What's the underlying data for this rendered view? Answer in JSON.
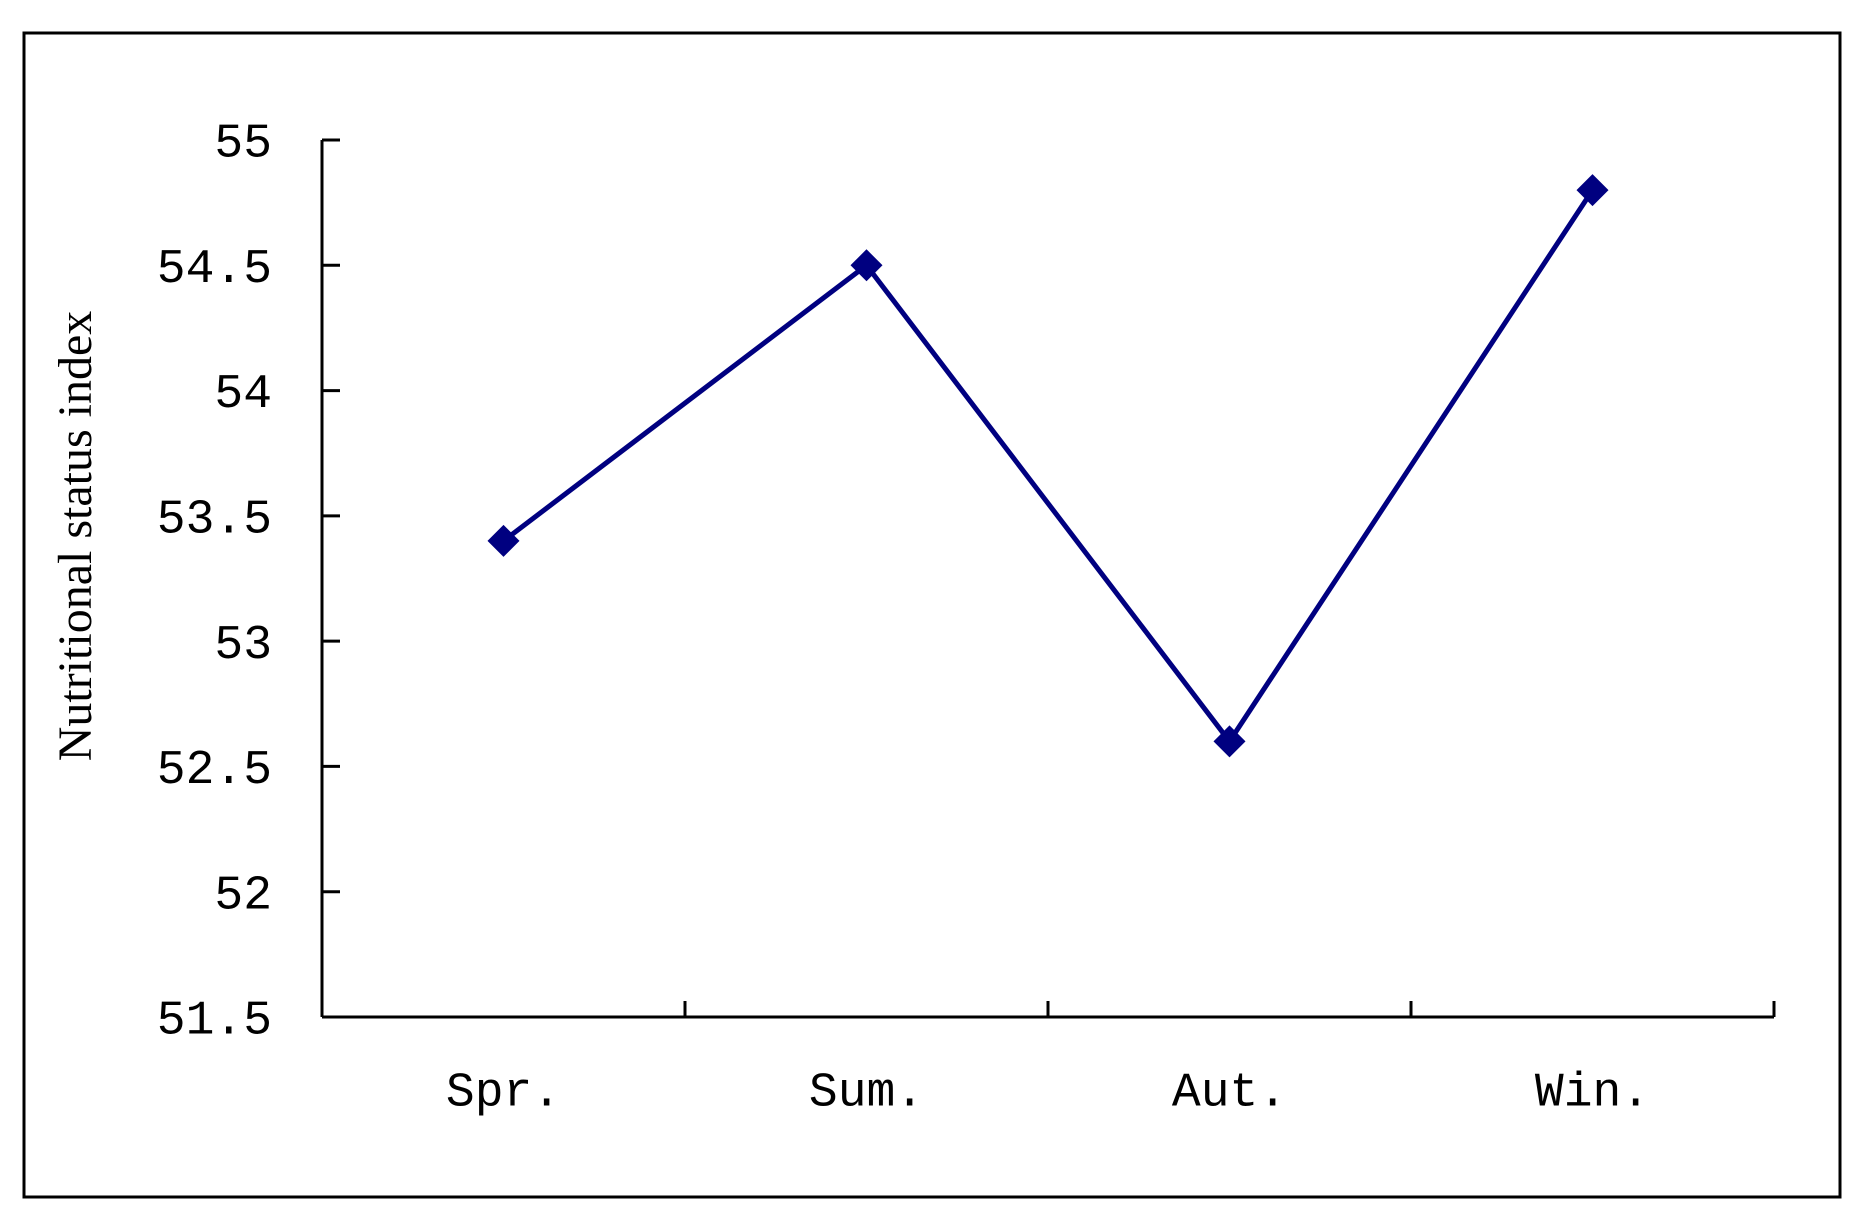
{
  "chart_data": {
    "type": "line",
    "y_label": "Nutritional status index",
    "categories": [
      "Spr.",
      "Sum.",
      "Aut.",
      "Win."
    ],
    "series": [
      {
        "color": "#000080",
        "values": [
          53.4,
          54.5,
          52.6,
          54.8
        ]
      }
    ],
    "ylim": [
      51.5,
      55
    ],
    "yticks": [
      51.5,
      52,
      52.5,
      53,
      53.5,
      54,
      54.5,
      55
    ],
    "grid": false
  }
}
